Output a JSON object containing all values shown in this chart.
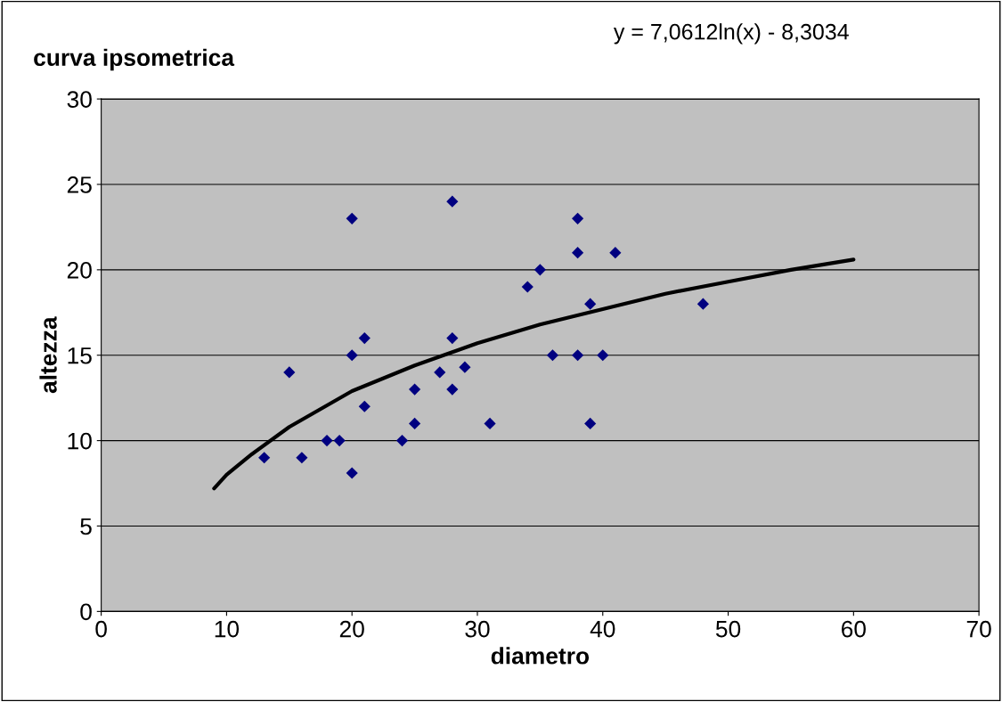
{
  "chart_data": {
    "type": "scatter",
    "title": "curva ipsometrica",
    "xlabel": "diametro",
    "ylabel": "altezza",
    "annotations": [
      "y = 7,0612ln(x) - 8,3034"
    ],
    "series": [
      {
        "color": "#000080",
        "marker": "diamond",
        "x": [
          13,
          15,
          16,
          18,
          19,
          20,
          20,
          20,
          21,
          21,
          24,
          25,
          25,
          27,
          28,
          28,
          28,
          29,
          31,
          34,
          35,
          36,
          38,
          38,
          38,
          39,
          39,
          40,
          41,
          48
        ],
        "values": [
          9,
          14,
          9,
          10,
          10,
          23,
          15,
          8.1,
          16,
          12,
          10,
          13,
          11,
          14,
          24,
          16,
          13,
          14.3,
          11,
          19,
          20,
          15,
          23,
          21,
          15,
          18,
          11,
          15,
          21,
          18
        ]
      },
      {
        "type": "line",
        "color": "#000000",
        "marker": "none",
        "line_style": "solid",
        "x": [
          9,
          10,
          12,
          15,
          20,
          25,
          30,
          35,
          40,
          45,
          50,
          55,
          60
        ],
        "values": [
          7.2,
          8.0,
          9.2,
          10.8,
          12.9,
          14.4,
          15.7,
          16.8,
          17.7,
          18.6,
          19.3,
          20.0,
          20.6
        ]
      }
    ],
    "xlim": [
      0,
      70
    ],
    "xticks": [
      0,
      10,
      20,
      30,
      40,
      50,
      60,
      70
    ],
    "ylim": [
      0,
      30
    ],
    "yticks": [
      0,
      5,
      10,
      15,
      20,
      25,
      30
    ],
    "grid": "y",
    "legend": false
  }
}
